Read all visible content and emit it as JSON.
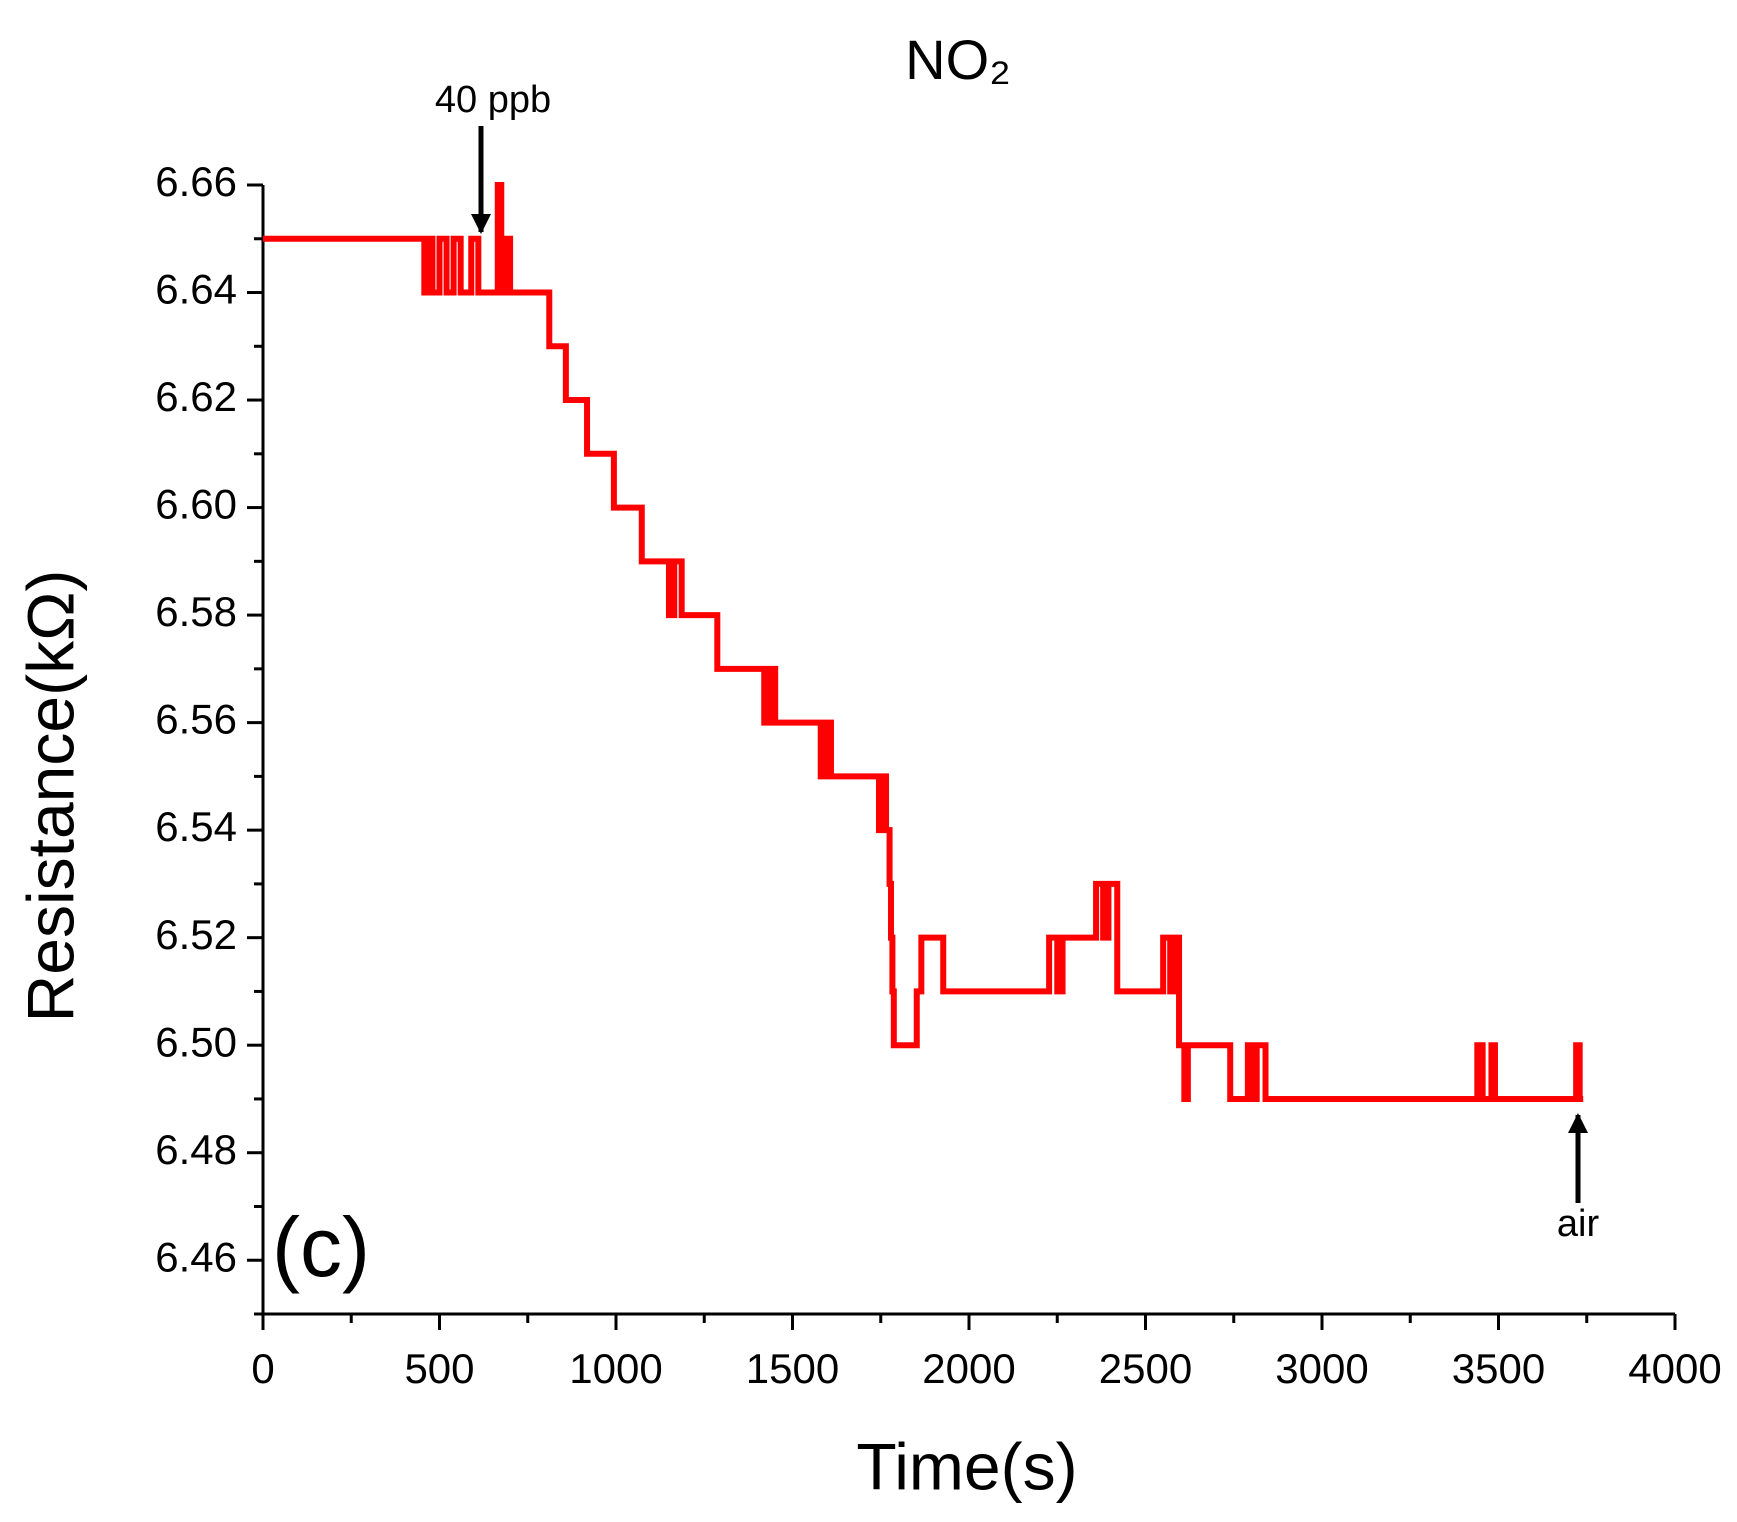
{
  "chart_data": {
    "type": "line",
    "title": "NO₂",
    "xlabel": "Time(s)",
    "ylabel": "Resistance(kΩ)",
    "annotations": [
      "40 ppb",
      "air",
      "(c)"
    ],
    "color": "#ff0000",
    "xlim": [
      0,
      4000
    ],
    "xticks": [
      0,
      500,
      1000,
      1500,
      2000,
      2500,
      3000,
      3500,
      4000
    ],
    "xticks_minor": [
      250,
      750,
      1250,
      1750,
      2250,
      2750,
      3250,
      3750
    ],
    "ylim": [
      6.45,
      6.66
    ],
    "yticks": [
      6.46,
      6.48,
      {
        "value": 6.5,
        "label": "6.50"
      },
      6.52,
      6.54,
      6.56,
      6.58,
      {
        "value": 6.6,
        "label": "6.60"
      },
      6.62,
      6.64,
      6.66
    ],
    "yticks_minor": [
      6.45,
      6.47,
      6.49,
      6.51,
      6.53,
      6.55,
      6.57,
      6.59,
      6.61,
      6.63,
      6.65
    ],
    "x": [
      0,
      457,
      457,
      470,
      470,
      480,
      480,
      500,
      500,
      520,
      520,
      540,
      540,
      560,
      560,
      590,
      590,
      610,
      610,
      665,
      665,
      675,
      675,
      690,
      690,
      700,
      700,
      811,
      811,
      858,
      858,
      918,
      918,
      994,
      994,
      1073,
      1073,
      1150,
      1150,
      1165,
      1165,
      1186,
      1186,
      1287,
      1287,
      1420,
      1420,
      1435,
      1435,
      1451,
      1451,
      1580,
      1580,
      1595,
      1595,
      1609,
      1609,
      1745,
      1745,
      1755,
      1755,
      1765,
      1765,
      1775,
      1775,
      1779,
      1779,
      1783,
      1783,
      1787,
      1787,
      1852,
      1852,
      1865,
      1865,
      1927,
      1927,
      2227,
      2227,
      2250,
      2250,
      2265,
      2265,
      2360,
      2360,
      2380,
      2380,
      2395,
      2395,
      2420,
      2420,
      2550,
      2550,
      2570,
      2570,
      2585,
      2585,
      2595,
      2595,
      2610,
      2610,
      2620,
      2620,
      2740,
      2740,
      2790,
      2790,
      2800,
      2800,
      2815,
      2815,
      2840,
      2840,
      3440,
      3440,
      3455,
      3455,
      3480,
      3480,
      3490,
      3490,
      3720,
      3720,
      3730,
      3730,
      3740
    ],
    "values": [
      6.65,
      6.65,
      6.64,
      6.64,
      6.65,
      6.65,
      6.64,
      6.64,
      6.65,
      6.65,
      6.64,
      6.64,
      6.65,
      6.65,
      6.64,
      6.64,
      6.65,
      6.65,
      6.64,
      6.64,
      6.66,
      6.66,
      6.64,
      6.64,
      6.65,
      6.65,
      6.64,
      6.64,
      6.63,
      6.63,
      6.62,
      6.62,
      6.61,
      6.61,
      6.6,
      6.6,
      6.59,
      6.59,
      6.58,
      6.58,
      6.59,
      6.59,
      6.58,
      6.58,
      6.57,
      6.57,
      6.56,
      6.56,
      6.57,
      6.57,
      6.56,
      6.56,
      6.55,
      6.55,
      6.56,
      6.56,
      6.55,
      6.55,
      6.54,
      6.54,
      6.55,
      6.55,
      6.54,
      6.54,
      6.53,
      6.53,
      6.52,
      6.52,
      6.51,
      6.51,
      6.5,
      6.5,
      6.51,
      6.51,
      6.52,
      6.52,
      6.51,
      6.51,
      6.52,
      6.52,
      6.51,
      6.51,
      6.52,
      6.52,
      6.53,
      6.53,
      6.52,
      6.52,
      6.53,
      6.53,
      6.51,
      6.51,
      6.52,
      6.52,
      6.51,
      6.51,
      6.52,
      6.52,
      6.5,
      6.5,
      6.49,
      6.49,
      6.5,
      6.5,
      6.49,
      6.49,
      6.5,
      6.5,
      6.49,
      6.49,
      6.5,
      6.5,
      6.49,
      6.49,
      6.5,
      6.5,
      6.49,
      6.49,
      6.5,
      6.5,
      6.49,
      6.49,
      6.5,
      6.5,
      6.49,
      6.49
    ]
  }
}
